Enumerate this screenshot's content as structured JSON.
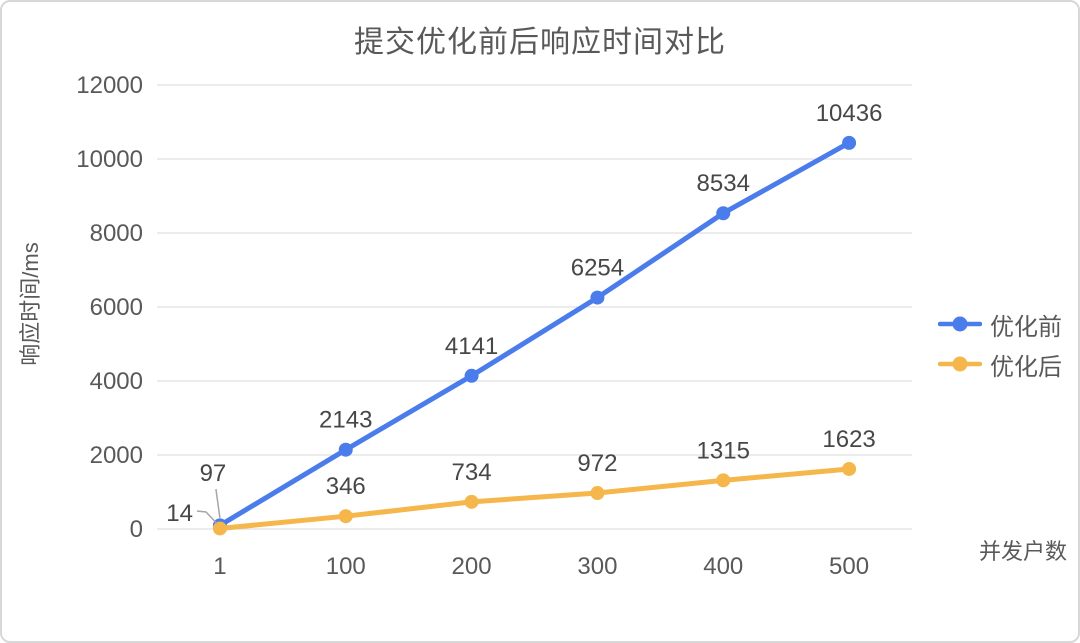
{
  "chart_data": {
    "type": "line",
    "title": "提交优化前后响应时间对比",
    "xlabel": "并发户数",
    "ylabel": "响应时间/ms",
    "categories": [
      "1",
      "100",
      "200",
      "300",
      "400",
      "500"
    ],
    "series": [
      {
        "name": "优化前",
        "color": "#4a7ceb",
        "values": [
          97,
          2143,
          4141,
          6254,
          8534,
          10436
        ]
      },
      {
        "name": "优化后",
        "color": "#f5b64b",
        "values": [
          14,
          346,
          734,
          972,
          1315,
          1623
        ]
      }
    ],
    "ylim": [
      0,
      12000
    ],
    "yticks": [
      0,
      2000,
      4000,
      6000,
      8000,
      10000,
      12000
    ],
    "grid": true,
    "legend_position": "right"
  },
  "colors": {
    "grid_line": "#d9d9d9",
    "tick_text": "#595959",
    "data_label_text": "#474747",
    "leader_line": "#a6a6a6",
    "series_before": "#4a7ceb",
    "series_after": "#f5b64b",
    "card_border": "#d8d8d8"
  }
}
